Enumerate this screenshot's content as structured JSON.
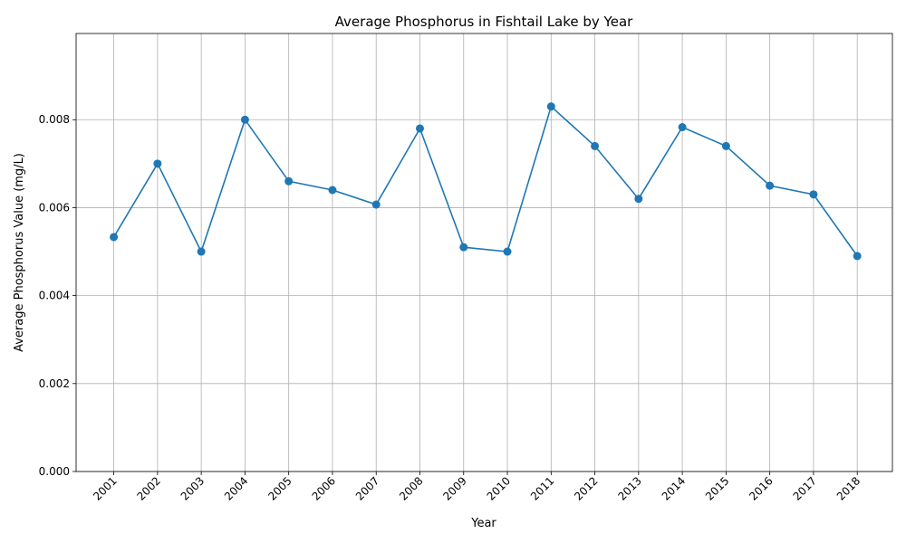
{
  "chart_data": {
    "type": "line",
    "title": "Average Phosphorus in Fishtail Lake by Year",
    "xlabel": "Year",
    "ylabel": "Average Phosphorus Value (mg/L)",
    "categories": [
      "2001",
      "2002",
      "2003",
      "2004",
      "2005",
      "2006",
      "2007",
      "2008",
      "2009",
      "2010",
      "2011",
      "2012",
      "2013",
      "2014",
      "2015",
      "2016",
      "2017",
      "2018"
    ],
    "values": [
      0.00533,
      0.007,
      0.005,
      0.008,
      0.0066,
      0.0064,
      0.00607,
      0.0078,
      0.0051,
      0.005,
      0.0083,
      0.0074,
      0.0062,
      0.00783,
      0.0074,
      0.0065,
      0.0063,
      0.0049
    ],
    "ylim": [
      0,
      0.00996
    ],
    "yticks": [
      "0.000",
      "0.002",
      "0.004",
      "0.006",
      "0.008"
    ],
    "grid": true,
    "color": "#1f77b4"
  }
}
